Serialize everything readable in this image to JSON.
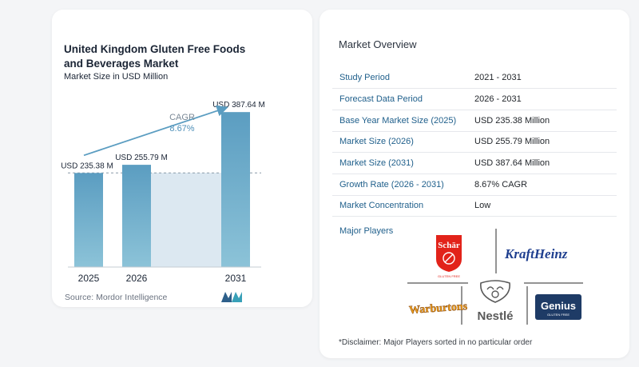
{
  "chart_data": {
    "type": "bar",
    "title": "United Kingdom Gluten Free Foods and Beverages Market",
    "subtitle": "Market Size in USD Million",
    "categories": [
      "2025",
      "2026",
      "2031"
    ],
    "values": [
      235.38,
      255.79,
      387.64
    ],
    "value_labels": [
      "USD 235.38 M",
      "USD 255.79 M",
      "USD 387.64 M"
    ],
    "ylim": [
      0,
      400
    ],
    "annotation": {
      "label": "CAGR",
      "value": "8.67%"
    },
    "colors": {
      "bar": "#5b9dc1",
      "bar_top": "#6aa9cc",
      "bar_bottom": "#8cc3d8",
      "area": "#dce8f1",
      "arrow": "#5b9dc1",
      "baseline_dash": "#8a9aa8"
    }
  },
  "source": "Source:  Mordor Intelligence",
  "overview": {
    "title": "Market Overview",
    "rows": [
      {
        "label": "Study Period",
        "value": "2021 - 2031"
      },
      {
        "label": "Forecast Data Period",
        "value": "2026 - 2031"
      },
      {
        "label": "Base Year Market Size (2025)",
        "value": "USD 235.38 Million"
      },
      {
        "label": "Market Size (2026)",
        "value": "USD 255.79 Million"
      },
      {
        "label": "Market Size (2031)",
        "value": "USD 387.64 Million"
      },
      {
        "label": "Growth Rate (2026 - 2031)",
        "value": "8.67% CAGR"
      },
      {
        "label": "Market Concentration",
        "value": "Low"
      }
    ]
  },
  "major_players": {
    "label": "Major Players",
    "logos": [
      {
        "name": "schar-logo",
        "text": "Schär",
        "sub": "GLUTEN FREE"
      },
      {
        "name": "kraft-heinz-logo",
        "text": "KraftHeinz"
      },
      {
        "name": "warburtons-logo",
        "text": "Warburtons"
      },
      {
        "name": "nestle-logo",
        "text": "Nestlé"
      },
      {
        "name": "genius-logo",
        "text": "Genius",
        "sub": "GLUTEN FREE"
      }
    ]
  },
  "disclaimer": "*Disclaimer: Major Players sorted in no particular order"
}
